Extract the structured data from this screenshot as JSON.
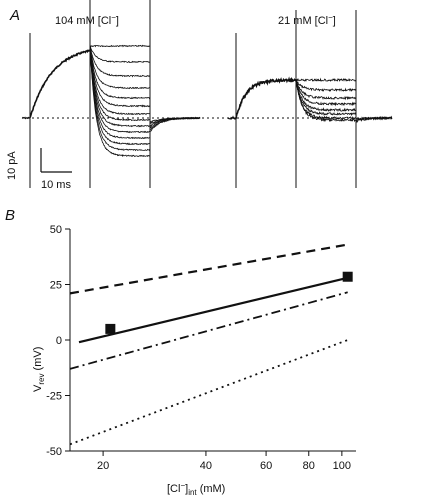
{
  "panel_a": {
    "letter": "A",
    "traces": [
      {
        "label_prefix": "104 mM [Cl",
        "label_suffix": "]"
      },
      {
        "label_prefix": "21 mM [Cl",
        "label_suffix": "]"
      }
    ],
    "scale_bar": {
      "y_label": "10 pA",
      "x_label": "10 ms"
    }
  },
  "panel_b": {
    "letter": "B"
  },
  "chart_data": {
    "type": "scatter",
    "x_scale": "log",
    "xlim": [
      16,
      110
    ],
    "ylim": [
      -50,
      50
    ],
    "xticks": [
      20,
      40,
      60,
      80,
      100
    ],
    "yticks": [
      50,
      25,
      0,
      -25,
      -50
    ],
    "ylabel": {
      "main": "V",
      "sub": "rev",
      "unit": " (mV)"
    },
    "xlabel": {
      "main": "[Cl",
      "sup": "−",
      "close": "]",
      "sub": "int",
      "unit": " (mM)"
    },
    "points": [
      {
        "x": 21,
        "y": 5
      },
      {
        "x": 104,
        "y": 28.5
      }
    ],
    "lines": [
      {
        "style": "dashed",
        "x": [
          16,
          104
        ],
        "y": [
          21,
          43
        ]
      },
      {
        "style": "solid",
        "x": [
          17,
          104
        ],
        "y": [
          -1,
          28
        ]
      },
      {
        "style": "dash-dot",
        "x": [
          16,
          104
        ],
        "y": [
          -13,
          21.5
        ]
      },
      {
        "style": "dotted",
        "x": [
          16,
          104
        ],
        "y": [
          -47,
          0
        ]
      }
    ]
  }
}
